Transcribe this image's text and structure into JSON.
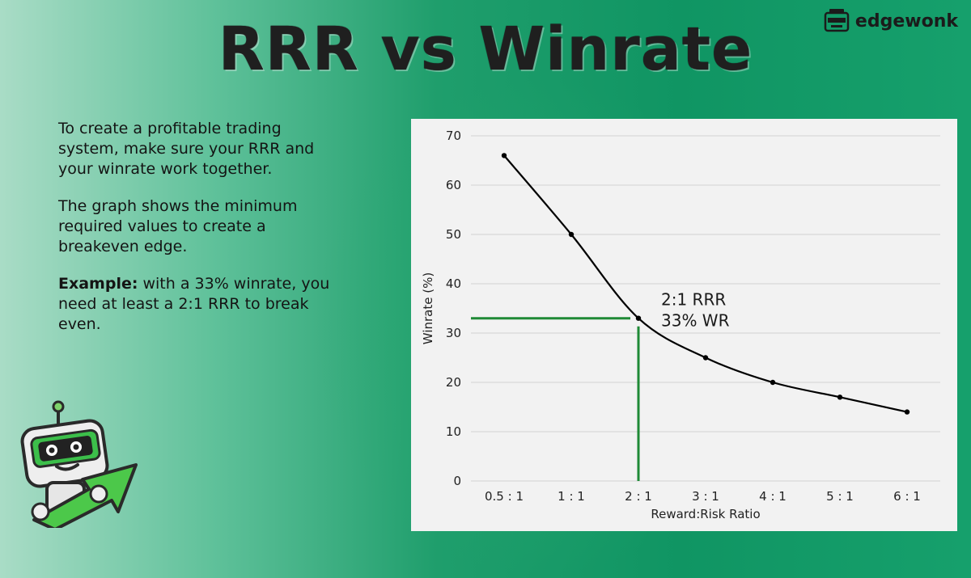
{
  "header": {
    "title": "RRR vs Winrate"
  },
  "brand": {
    "logo_text": "edgewonk",
    "logo_icon": "robot-face-icon"
  },
  "description": {
    "para1": "To create a profitable trading system, make sure your RRR and your winrate work together.",
    "para2": "The graph shows the minimum required values to create a breakeven edge.",
    "example_label": "Example:",
    "example_text": " with a 33% winrate, you need at least a 2:1 RRR to break even."
  },
  "colors": {
    "line": "#000000",
    "highlight": "#1f8a36",
    "grid": "#d2d2d2",
    "panel": "#f2f2f2"
  },
  "chart_data": {
    "type": "line",
    "title": "",
    "xlabel": "Reward:Risk Ratio",
    "ylabel": "Winrate (%)",
    "categories": [
      "0.5 : 1",
      "1 : 1",
      "2 : 1",
      "3 : 1",
      "4 : 1",
      "5 : 1",
      "6 : 1"
    ],
    "values": [
      66,
      50,
      33,
      25,
      20,
      17,
      14
    ],
    "ylim": [
      0,
      70
    ],
    "yticks": [
      0,
      10,
      20,
      30,
      40,
      50,
      60,
      70
    ],
    "grid": true,
    "highlight": {
      "category": "2 : 1",
      "value": 33,
      "label_line1": "2:1 RRR",
      "label_line2": "33% WR"
    }
  },
  "mascot": {
    "icon": "robot-mascot-icon",
    "arrow": "up-arrow-icon"
  }
}
